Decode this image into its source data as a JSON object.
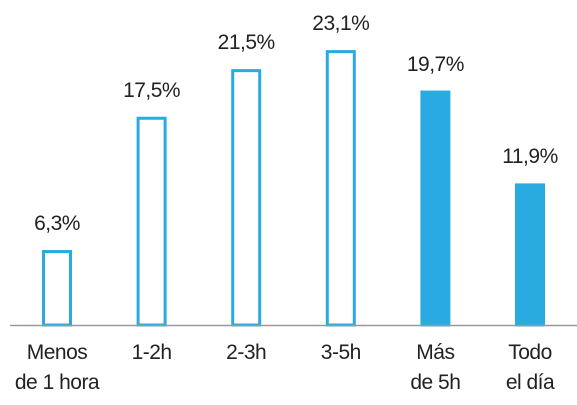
{
  "chart_data": {
    "type": "bar",
    "categories": [
      "Menos\nde 1 hora",
      "1-2h",
      "2-3h",
      "3-5h",
      "Más\nde 5h",
      "Todo\nel día"
    ],
    "values": [
      6.3,
      17.5,
      21.5,
      23.1,
      19.7,
      11.9
    ],
    "value_labels": [
      "6,3%",
      "17,5%",
      "21,5%",
      "23,1%",
      "19,7%",
      "11,9%"
    ],
    "color": "#29abe2",
    "bar_styles": [
      "outline",
      "outline",
      "outline",
      "outline",
      "filled",
      "filled"
    ],
    "ylim": [
      0,
      25
    ]
  }
}
